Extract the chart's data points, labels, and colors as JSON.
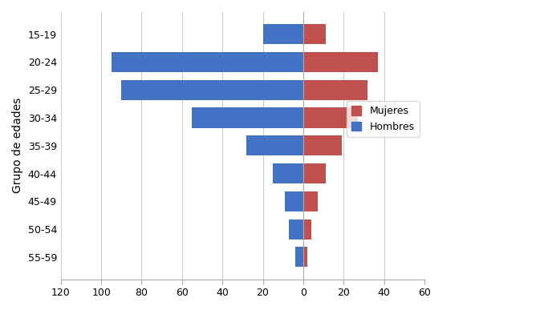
{
  "age_groups": [
    "15-19",
    "20-24",
    "25-29",
    "30-34",
    "35-39",
    "40-44",
    "45-49",
    "50-54",
    "55-59"
  ],
  "hombres": [
    -20,
    -95,
    -90,
    -55,
    -28,
    -15,
    -9,
    -7,
    -4
  ],
  "mujeres": [
    11,
    37,
    32,
    27,
    19,
    11,
    7,
    4,
    2
  ],
  "color_hombres": "#4472C4",
  "color_mujeres": "#C0504D",
  "ylabel": "Grupo de edades",
  "xlim": [
    -120,
    60
  ],
  "xticks": [
    -120,
    -100,
    -80,
    -60,
    -40,
    -20,
    0,
    20,
    40,
    60
  ],
  "xticklabels": [
    "120",
    "100",
    "80",
    "60",
    "40",
    "20",
    "0",
    "20",
    "40",
    "60"
  ],
  "legend_mujeres": "Mujeres",
  "legend_hombres": "Hombres",
  "background_color": "#FFFFFF",
  "grid_color": "#C8C8C8"
}
